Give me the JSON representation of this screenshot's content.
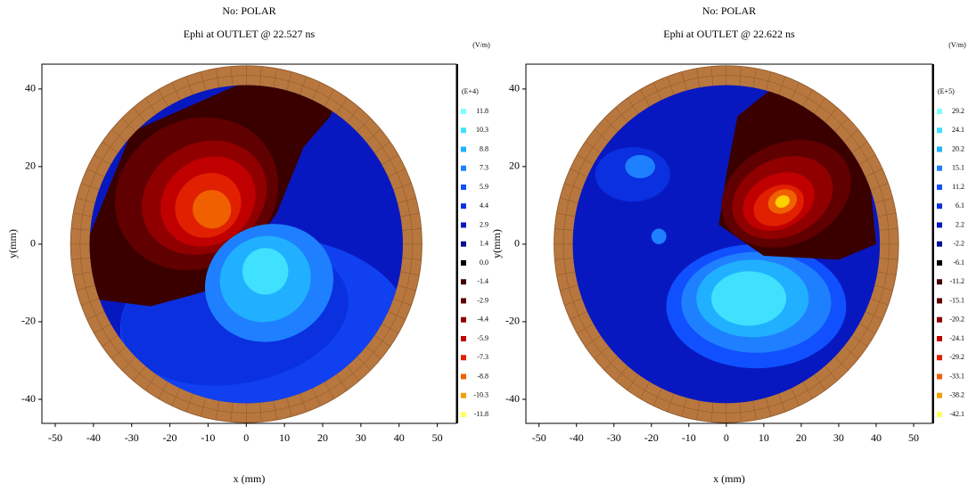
{
  "chart_data": [
    {
      "type": "contour",
      "title": "No: POLAR",
      "subtitle": "Ephi at OUTLET @ 22.527 ns",
      "units": "(V/m)",
      "x_label": "x (mm)",
      "y_label": "y(mm)",
      "xlim": [
        -53.5,
        55
      ],
      "ylim": [
        -46.2,
        46.4
      ],
      "xticks": [
        -50,
        -40,
        -30,
        -20,
        -10,
        0,
        10,
        20,
        30,
        40,
        50
      ],
      "yticks": [
        -40,
        -20,
        0,
        20,
        40
      ],
      "colorbar": {
        "scale": "(E+4)",
        "labels": [
          "11.8",
          "10.3",
          "8.8",
          "7.3",
          "5.9",
          "4.4",
          "2.9",
          "1.4",
          "0.0",
          "-1.4",
          "-2.9",
          "-4.4",
          "-5.9",
          "-7.3",
          "-8.8",
          "-10.3",
          "-11.8"
        ],
        "colors": [
          "#7fffff",
          "#40e0ff",
          "#20b0ff",
          "#1e80ff",
          "#1050ff",
          "#0a30e0",
          "#0818c0",
          "#081090",
          "#000000",
          "#400000",
          "#600000",
          "#900000",
          "#c00000",
          "#e02000",
          "#f06000",
          "#f0a000",
          "#ffff60"
        ]
      }
    },
    {
      "type": "contour",
      "title": "No: POLAR",
      "subtitle": "Ephi at OUTLET @ 22.622 ns",
      "units": "(V/m)",
      "x_label": "x (mm)",
      "y_label": "y(mm)",
      "xlim": [
        -53.5,
        55
      ],
      "ylim": [
        -46.2,
        46.4
      ],
      "xticks": [
        -50,
        -40,
        -30,
        -20,
        -10,
        0,
        10,
        20,
        30,
        40,
        50
      ],
      "yticks": [
        -40,
        -20,
        0,
        20,
        40
      ],
      "colorbar": {
        "scale": "(E+5)",
        "labels": [
          "29.2",
          "24.1",
          "20.2",
          "15.1",
          "11.2",
          "6.1",
          "2.2",
          "-2.2",
          "-6.1",
          "-11.2",
          "-15.1",
          "-20.2",
          "-24.1",
          "-29.2",
          "-33.1",
          "-38.2",
          "-42.1"
        ],
        "colors": [
          "#7fffff",
          "#40e0ff",
          "#20b0ff",
          "#1e80ff",
          "#1050ff",
          "#0a30e0",
          "#0818c0",
          "#081090",
          "#000000",
          "#400000",
          "#600000",
          "#900000",
          "#c00000",
          "#e02000",
          "#f06000",
          "#f0a000",
          "#ffff60"
        ]
      }
    }
  ]
}
